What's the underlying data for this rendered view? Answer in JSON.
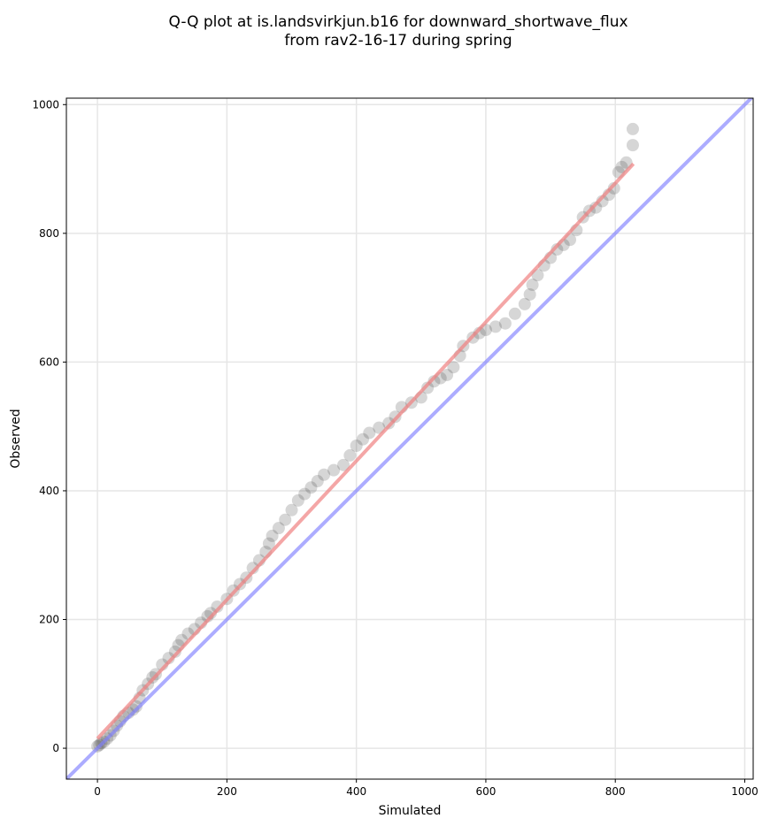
{
  "chart_data": {
    "type": "scatter",
    "title": [
      "Q-Q plot at is.landsvirkjun.b16 for downward_shortwave_flux",
      "from rav2-16-17 during spring"
    ],
    "xlabel": "Simulated",
    "ylabel": "Observed",
    "xlim": [
      -48,
      1013
    ],
    "ylim": [
      -48,
      1010
    ],
    "xticks": [
      0,
      200,
      400,
      600,
      800,
      1000
    ],
    "yticks": [
      0,
      200,
      400,
      600,
      800,
      1000
    ],
    "grid": true,
    "points": [
      [
        0,
        3
      ],
      [
        3,
        5
      ],
      [
        6,
        8
      ],
      [
        10,
        10
      ],
      [
        15,
        15
      ],
      [
        20,
        20
      ],
      [
        25,
        27
      ],
      [
        30,
        35
      ],
      [
        35,
        42
      ],
      [
        40,
        50
      ],
      [
        48,
        55
      ],
      [
        55,
        60
      ],
      [
        60,
        65
      ],
      [
        65,
        78
      ],
      [
        70,
        90
      ],
      [
        78,
        100
      ],
      [
        85,
        110
      ],
      [
        90,
        115
      ],
      [
        100,
        130
      ],
      [
        110,
        140
      ],
      [
        120,
        150
      ],
      [
        125,
        160
      ],
      [
        130,
        168
      ],
      [
        140,
        178
      ],
      [
        150,
        185
      ],
      [
        160,
        195
      ],
      [
        170,
        205
      ],
      [
        175,
        210
      ],
      [
        185,
        220
      ],
      [
        200,
        232
      ],
      [
        210,
        245
      ],
      [
        220,
        255
      ],
      [
        230,
        265
      ],
      [
        240,
        280
      ],
      [
        250,
        292
      ],
      [
        260,
        305
      ],
      [
        265,
        318
      ],
      [
        270,
        330
      ],
      [
        280,
        342
      ],
      [
        290,
        355
      ],
      [
        300,
        370
      ],
      [
        310,
        385
      ],
      [
        320,
        395
      ],
      [
        330,
        405
      ],
      [
        340,
        415
      ],
      [
        350,
        425
      ],
      [
        365,
        432
      ],
      [
        380,
        440
      ],
      [
        390,
        455
      ],
      [
        400,
        470
      ],
      [
        410,
        480
      ],
      [
        420,
        490
      ],
      [
        435,
        498
      ],
      [
        450,
        505
      ],
      [
        460,
        515
      ],
      [
        470,
        530
      ],
      [
        485,
        537
      ],
      [
        500,
        545
      ],
      [
        510,
        560
      ],
      [
        520,
        570
      ],
      [
        530,
        575
      ],
      [
        540,
        580
      ],
      [
        550,
        592
      ],
      [
        560,
        610
      ],
      [
        565,
        625
      ],
      [
        580,
        638
      ],
      [
        590,
        645
      ],
      [
        600,
        650
      ],
      [
        615,
        655
      ],
      [
        630,
        660
      ],
      [
        645,
        675
      ],
      [
        660,
        690
      ],
      [
        668,
        705
      ],
      [
        672,
        720
      ],
      [
        680,
        735
      ],
      [
        690,
        750
      ],
      [
        700,
        762
      ],
      [
        710,
        775
      ],
      [
        720,
        782
      ],
      [
        730,
        790
      ],
      [
        740,
        805
      ],
      [
        750,
        825
      ],
      [
        760,
        835
      ],
      [
        770,
        840
      ],
      [
        780,
        850
      ],
      [
        790,
        860
      ],
      [
        798,
        870
      ],
      [
        805,
        895
      ],
      [
        810,
        903
      ],
      [
        817,
        910
      ],
      [
        827,
        937
      ],
      [
        827,
        962
      ]
    ],
    "fit_line": {
      "x": [
        0,
        828
      ],
      "y": [
        15,
        908
      ],
      "color": "#f08080"
    },
    "identity_line": {
      "color": "#8080ff"
    },
    "point_color": "#333333"
  }
}
